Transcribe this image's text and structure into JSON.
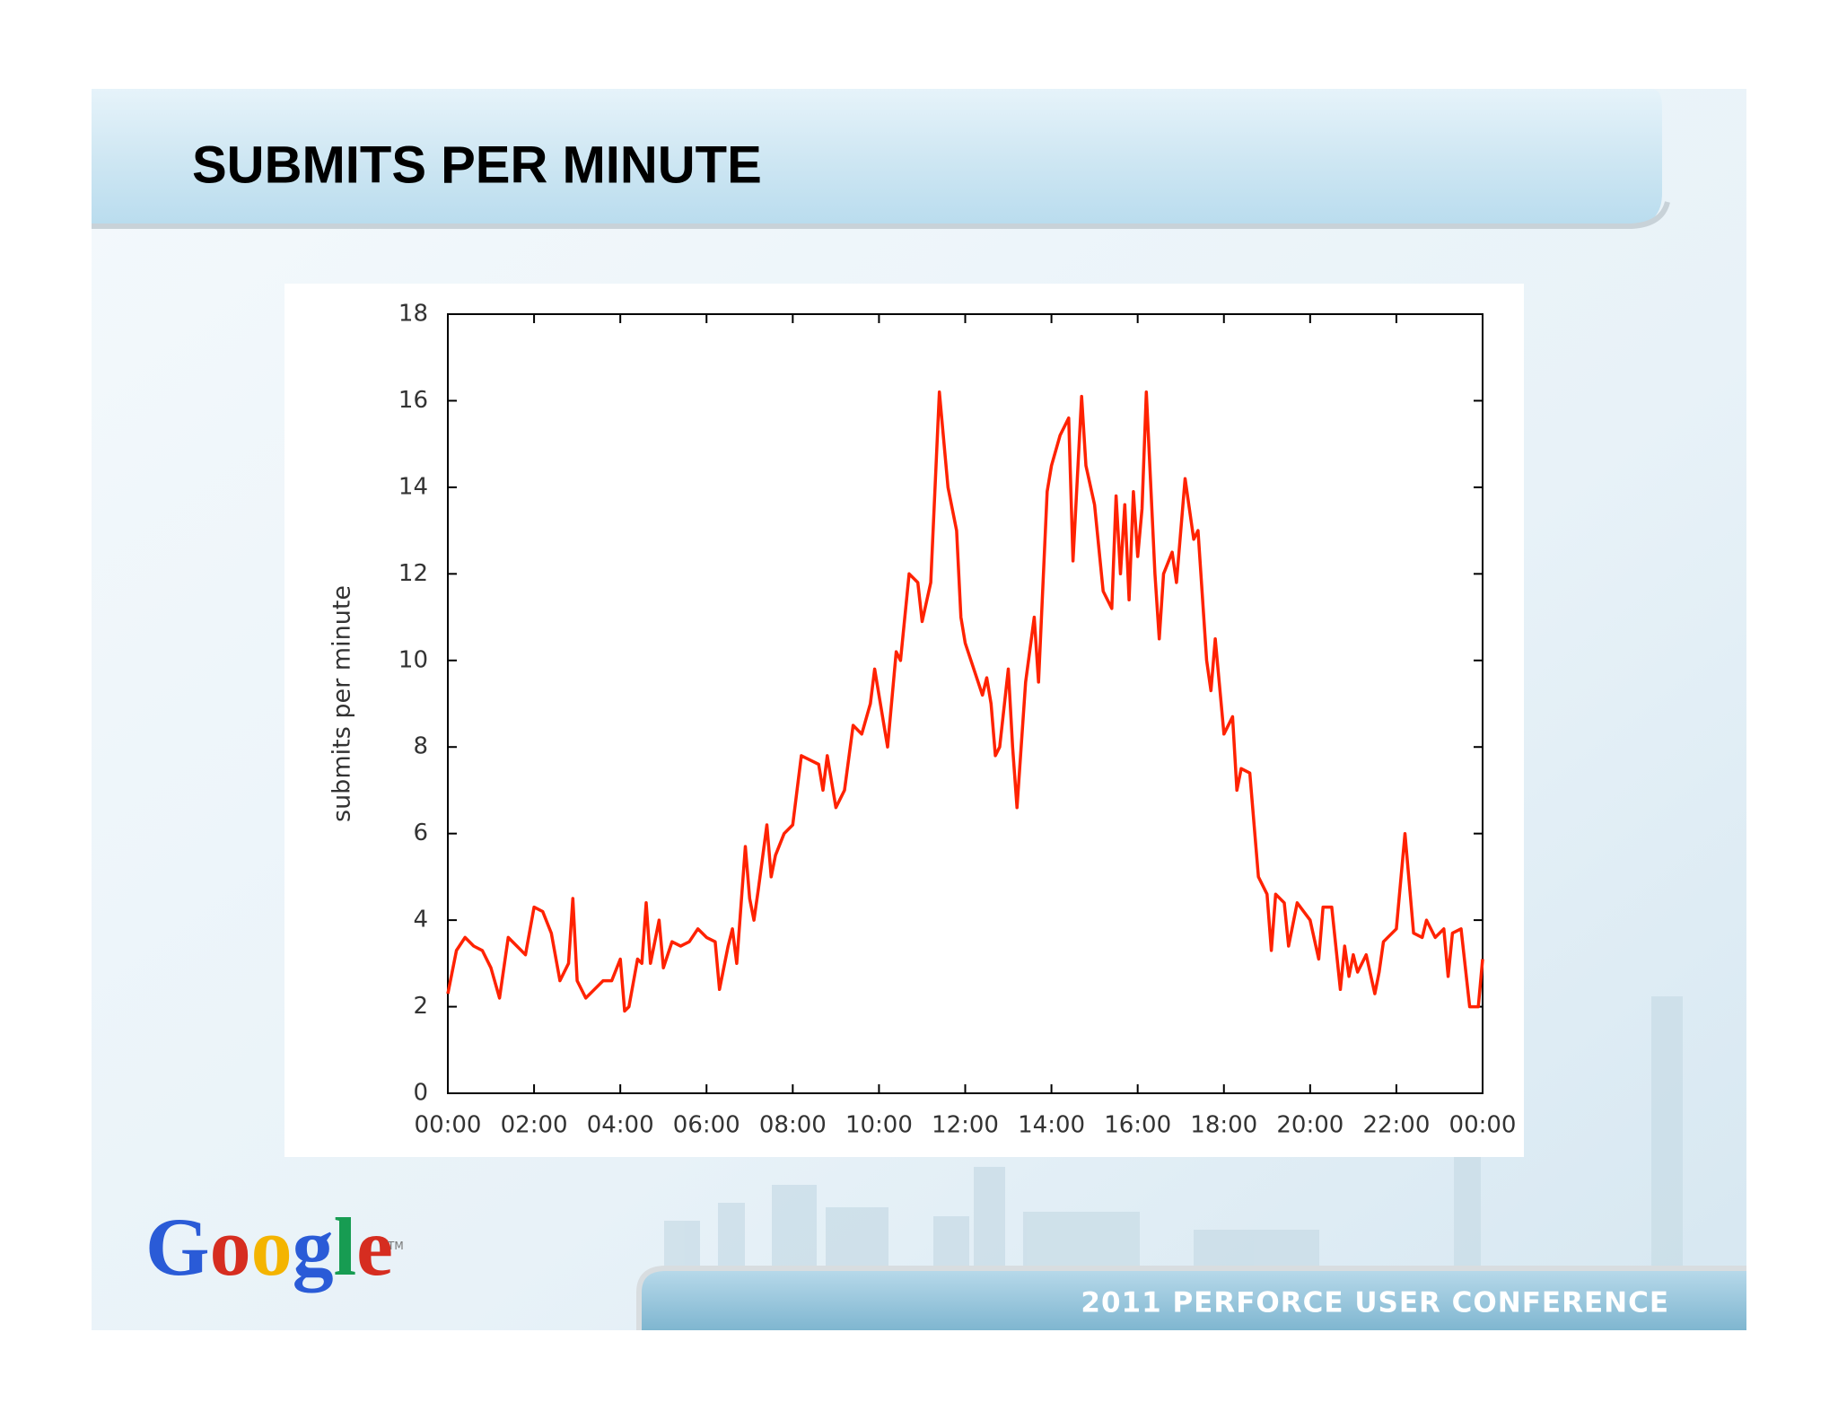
{
  "chart_data": {
    "type": "line",
    "title": "SUBMITS PER MINUTE",
    "ylabel": "submits per minute",
    "footer": "2011 PERFORCE USER CONFERENCE",
    "logo": "Google",
    "logo_mark": "TM",
    "xlim": [
      0,
      24
    ],
    "xticks": [
      {
        "value": 0,
        "label": "00:00"
      },
      {
        "value": 2,
        "label": "02:00"
      },
      {
        "value": 4,
        "label": "04:00"
      },
      {
        "value": 6,
        "label": "06:00"
      },
      {
        "value": 8,
        "label": "08:00"
      },
      {
        "value": 10,
        "label": "10:00"
      },
      {
        "value": 12,
        "label": "12:00"
      },
      {
        "value": 14,
        "label": "14:00"
      },
      {
        "value": 16,
        "label": "16:00"
      },
      {
        "value": 18,
        "label": "18:00"
      },
      {
        "value": 20,
        "label": "20:00"
      },
      {
        "value": 22,
        "label": "22:00"
      },
      {
        "value": 24,
        "label": "00:00"
      }
    ],
    "ylim": [
      0,
      18
    ],
    "yticks": [
      0,
      2,
      4,
      6,
      8,
      10,
      12,
      14,
      16,
      18
    ],
    "grid": false,
    "x": [
      0,
      0.2,
      0.4,
      0.6,
      0.8,
      1.0,
      1.2,
      1.4,
      1.6,
      1.8,
      2.0,
      2.2,
      2.4,
      2.6,
      2.8,
      2.9,
      3.0,
      3.2,
      3.4,
      3.6,
      3.8,
      4.0,
      4.1,
      4.2,
      4.4,
      4.5,
      4.6,
      4.7,
      4.9,
      5.0,
      5.2,
      5.4,
      5.6,
      5.8,
      6.0,
      6.2,
      6.3,
      6.5,
      6.6,
      6.7,
      6.9,
      7.0,
      7.1,
      7.2,
      7.4,
      7.5,
      7.6,
      7.8,
      8.0,
      8.2,
      8.4,
      8.6,
      8.7,
      8.8,
      9.0,
      9.2,
      9.4,
      9.6,
      9.8,
      9.9,
      10.0,
      10.2,
      10.4,
      10.5,
      10.7,
      10.9,
      11.0,
      11.2,
      11.4,
      11.6,
      11.8,
      11.9,
      12.0,
      12.2,
      12.4,
      12.5,
      12.6,
      12.7,
      12.8,
      13.0,
      13.1,
      13.2,
      13.4,
      13.6,
      13.7,
      13.9,
      14.0,
      14.2,
      14.4,
      14.5,
      14.6,
      14.7,
      14.8,
      15.0,
      15.2,
      15.4,
      15.5,
      15.6,
      15.7,
      15.8,
      15.9,
      16.0,
      16.1,
      16.2,
      16.4,
      16.5,
      16.6,
      16.8,
      16.9,
      17.1,
      17.3,
      17.4,
      17.6,
      17.7,
      17.8,
      18.0,
      18.2,
      18.3,
      18.4,
      18.6,
      18.8,
      19.0,
      19.1,
      19.2,
      19.4,
      19.5,
      19.7,
      20.0,
      20.2,
      20.3,
      20.5,
      20.7,
      20.8,
      20.9,
      21.0,
      21.1,
      21.3,
      21.5,
      21.6,
      21.7,
      22.0,
      22.2,
      22.4,
      22.6,
      22.7,
      22.9,
      23.1,
      23.2,
      23.3,
      23.5,
      23.7,
      23.9,
      24.0
    ],
    "series": [
      {
        "name": "submits per minute",
        "color": "#ff2200",
        "values": [
          2.3,
          3.3,
          3.6,
          3.4,
          3.3,
          2.9,
          2.2,
          3.6,
          3.4,
          3.2,
          4.3,
          4.2,
          3.7,
          2.6,
          3.0,
          4.5,
          2.6,
          2.2,
          2.4,
          2.6,
          2.6,
          3.1,
          1.9,
          2.0,
          3.1,
          3.0,
          4.4,
          3.0,
          4.0,
          2.9,
          3.5,
          3.4,
          3.5,
          3.8,
          3.6,
          3.5,
          2.4,
          3.4,
          3.8,
          3.0,
          5.7,
          4.5,
          4.0,
          4.7,
          6.2,
          5.0,
          5.5,
          6.0,
          6.2,
          7.8,
          7.7,
          7.6,
          7.0,
          7.8,
          6.6,
          7.0,
          8.5,
          8.3,
          9.0,
          9.8,
          9.2,
          8.0,
          10.2,
          10.0,
          12.0,
          11.8,
          10.9,
          11.8,
          16.2,
          14.0,
          13.0,
          11.0,
          10.4,
          9.8,
          9.2,
          9.6,
          9.0,
          7.8,
          8.0,
          9.8,
          8.0,
          6.6,
          9.5,
          11.0,
          9.5,
          13.9,
          14.5,
          15.2,
          15.6,
          12.3,
          14.2,
          16.1,
          14.5,
          13.6,
          11.6,
          11.2,
          13.8,
          12.0,
          13.6,
          11.4,
          13.9,
          12.4,
          13.5,
          16.2,
          12.0,
          10.5,
          12.0,
          12.5,
          11.8,
          14.2,
          12.8,
          13.0,
          10.0,
          9.3,
          10.5,
          8.3,
          8.7,
          7.0,
          7.5,
          7.4,
          5.0,
          4.6,
          3.3,
          4.6,
          4.4,
          3.4,
          4.4,
          4.0,
          3.1,
          4.3,
          4.3,
          2.4,
          3.4,
          2.7,
          3.2,
          2.8,
          3.2,
          2.3,
          2.8,
          3.5,
          3.8,
          6.0,
          3.7,
          3.6,
          4.0,
          3.6,
          3.8,
          2.7,
          3.7,
          3.8,
          2.0,
          2.0,
          3.1
        ]
      }
    ]
  }
}
